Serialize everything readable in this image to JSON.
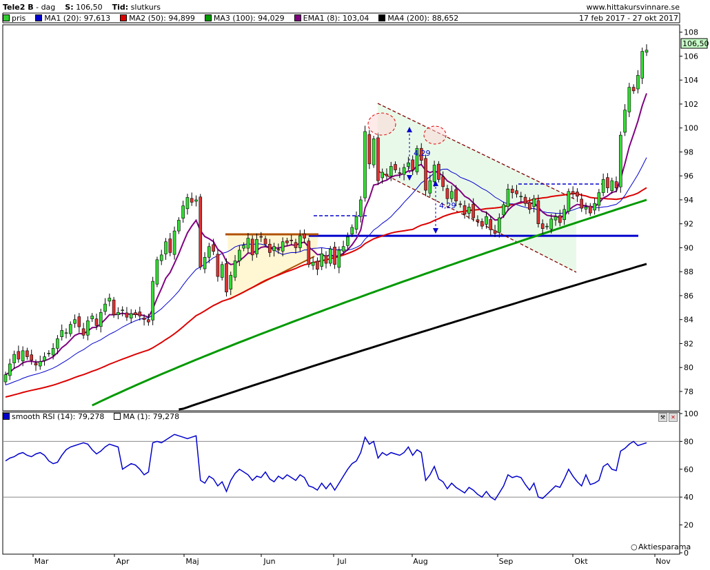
{
  "header": {
    "ticker": "Tele2 B",
    "sep": " - ",
    "interval": "dag",
    "price_label": "S:",
    "price": "106,50",
    "time_label": "Tid:",
    "time": "slutkurs",
    "site": "www.hittakursvinnare.se",
    "period": "17 feb 2017 - 27 okt 2017"
  },
  "legend_price": [
    {
      "label": "pris",
      "color": "#33cc33"
    },
    {
      "label": "MA1 (20): 97,613",
      "color": "#0000cc"
    },
    {
      "label": "MA2 (50): 94,899",
      "color": "#dd0000"
    },
    {
      "label": "MA3 (100): 94,029",
      "color": "#009900"
    },
    {
      "label": "EMA1 (8): 103,04",
      "color": "#800080"
    },
    {
      "label": "MA4 (200): 88,652",
      "color": "#000000"
    }
  ],
  "legend_rsi": [
    {
      "label": "smooth RSI (14): 79,278",
      "color": "#0000cc"
    },
    {
      "label": "MA (1): 79,278",
      "color": "#ffffff"
    }
  ],
  "last_price_tag": "106,50",
  "watermark": "Aktiesparama",
  "annotations": {
    "gap1": "4,29",
    "gap2": "4,29"
  },
  "chart_data": [
    {
      "type": "candlestick",
      "title": "Tele2 B - dag",
      "ylim": [
        76.5,
        108.5
      ],
      "yticks": [
        78,
        80,
        82,
        84,
        86,
        88,
        90,
        92,
        94,
        96,
        98,
        100,
        102,
        104,
        106,
        108
      ],
      "xlabels": [
        "Mar",
        "Apr",
        "Maj",
        "Jun",
        "Jul",
        "Aug",
        "Sep",
        "Okt",
        "Nov"
      ],
      "support_level": 91.0,
      "series": [
        {
          "name": "pris",
          "close": [
            79.4,
            80.3,
            81.1,
            80.7,
            81.4,
            80.9,
            80.6,
            80.2,
            80.5,
            80.9,
            81.2,
            81.6,
            82.4,
            83.1,
            82.9,
            83.6,
            84.0,
            83.4,
            82.7,
            83.9,
            84.3,
            83.5,
            84.6,
            85.3,
            85.8,
            84.4,
            84.6,
            84.8,
            84.2,
            84.5,
            84.4,
            84.3,
            84.0,
            83.8,
            87.2,
            89.0,
            89.4,
            90.5,
            89.6,
            91.4,
            92.3,
            93.5,
            94.2,
            93.8,
            94.0,
            88.4,
            89.2,
            90.1,
            89.7,
            87.6,
            88.6,
            86.3,
            87.7,
            88.9,
            89.8,
            90.2,
            90.8,
            89.4,
            90.7,
            90.9,
            90.3,
            89.6,
            90.1,
            89.8,
            90.5,
            90.4,
            90.6,
            90.0,
            91.0,
            90.8,
            88.6,
            88.8,
            88.2,
            89.5,
            88.7,
            89.9,
            88.6,
            89.8,
            90.1,
            90.9,
            91.7,
            92.6,
            94.0,
            99.7,
            97.0,
            99.1,
            95.6,
            96.3,
            96.0,
            96.8,
            96.5,
            96.2,
            96.7,
            97.1,
            96.5,
            98.3,
            97.3,
            94.8,
            95.6,
            96.9,
            95.7,
            95.1,
            94.1,
            94.7,
            93.9,
            93.6,
            92.8,
            93.4,
            92.5,
            92.2,
            91.8,
            92.6,
            91.5,
            91.2,
            92.5,
            93.6,
            94.9,
            94.6,
            94.5,
            94.3,
            93.7,
            93.2,
            94.1,
            92.0,
            91.6,
            91.8,
            92.4,
            92.6,
            92.1,
            93.2,
            94.7,
            94.5,
            94.3,
            93.3,
            93.4,
            92.9,
            93.7,
            94.6,
            95.7,
            95.0,
            95.6,
            95.0,
            99.4,
            101.5,
            103.4,
            103.1,
            104.4,
            106.4,
            106.5
          ]
        },
        {
          "name": "MA1 (20)",
          "values_summary": "rising",
          "last": 97.613
        },
        {
          "name": "MA2 (50)",
          "last": 94.899
        },
        {
          "name": "MA3 (100)",
          "last": 94.029
        },
        {
          "name": "EMA1 (8)",
          "last": 103.04
        },
        {
          "name": "MA4 (200)",
          "last": 88.652
        }
      ]
    },
    {
      "type": "line",
      "title": "smooth RSI (14)",
      "ylim": [
        0,
        100
      ],
      "yticks": [
        0,
        20,
        40,
        60,
        80,
        100
      ],
      "hlines": [
        40,
        80
      ],
      "series": [
        {
          "name": "smooth RSI (14)",
          "values": [
            66,
            68,
            69,
            71,
            72,
            70,
            69,
            71,
            72,
            70,
            66,
            64,
            65,
            70,
            74,
            76,
            77,
            78,
            79,
            78,
            74,
            71,
            73,
            76,
            78,
            77,
            76,
            60,
            62,
            64,
            63,
            60,
            56,
            58,
            79,
            80,
            79,
            81,
            83,
            85,
            84,
            83,
            82,
            83,
            84,
            52,
            50,
            55,
            53,
            48,
            51,
            44,
            52,
            57,
            60,
            58,
            56,
            52,
            55,
            54,
            58,
            53,
            51,
            55,
            53,
            56,
            54,
            52,
            56,
            54,
            48,
            47,
            45,
            50,
            46,
            50,
            45,
            50,
            55,
            60,
            64,
            66,
            72,
            83,
            78,
            80,
            68,
            72,
            70,
            72,
            71,
            70,
            72,
            76,
            70,
            74,
            72,
            52,
            56,
            62,
            53,
            51,
            46,
            50,
            47,
            45,
            43,
            47,
            45,
            42,
            40,
            44,
            40,
            38,
            43,
            48,
            56,
            54,
            55,
            54,
            49,
            45,
            50,
            40,
            39,
            42,
            45,
            48,
            47,
            53,
            60,
            55,
            51,
            48,
            56,
            49,
            50,
            52,
            62,
            64,
            60,
            59,
            73,
            75,
            78,
            80,
            77,
            78,
            79
          ]
        },
        {
          "name": "MA (1)",
          "last": 79.278
        }
      ]
    }
  ]
}
